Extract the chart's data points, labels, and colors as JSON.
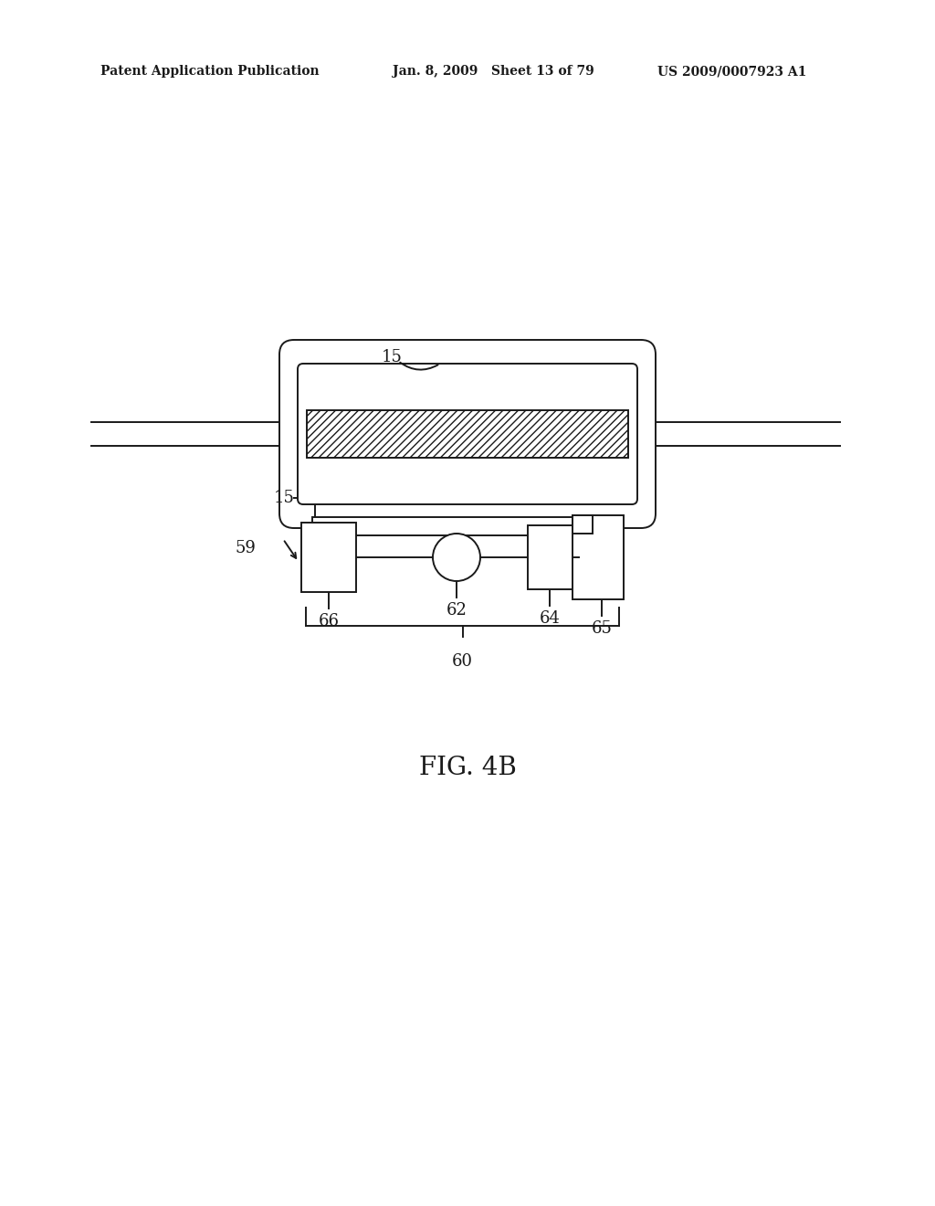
{
  "bg_color": "#ffffff",
  "line_color": "#1a1a1a",
  "header_left": "Patent Application Publication",
  "header_mid": "Jan. 8, 2009   Sheet 13 of 79",
  "header_right": "US 2009/0007923 A1",
  "fig_label": "FIG. 4B"
}
